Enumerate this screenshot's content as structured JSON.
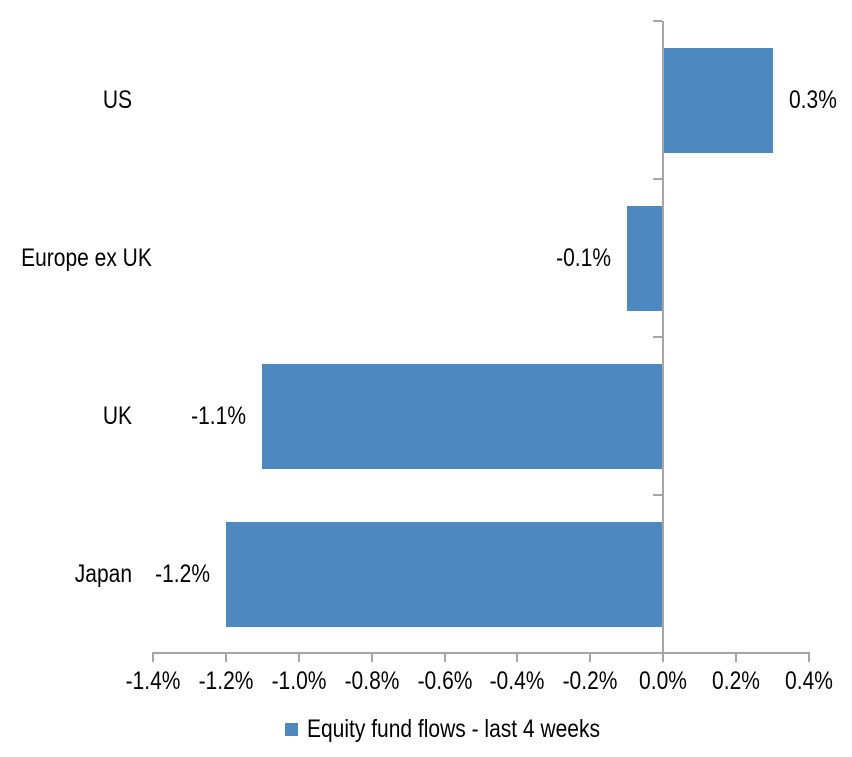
{
  "chart_data": {
    "type": "bar",
    "orientation": "horizontal",
    "title": "",
    "categories": [
      "US",
      "Europe ex UK",
      "UK",
      "Japan"
    ],
    "series": [
      {
        "name": "Equity fund flows - last 4 weeks",
        "values": [
          0.3,
          -0.1,
          -1.1,
          -1.2
        ],
        "data_labels": [
          "0.3%",
          "-0.1%",
          "-1.1%",
          "-1.2%"
        ]
      }
    ],
    "xlim": [
      -1.4,
      0.4
    ],
    "x_tick_step": 0.2,
    "x_tick_labels": [
      "-1.4%",
      "-1.2%",
      "-1.0%",
      "-0.8%",
      "-0.6%",
      "-0.4%",
      "-0.2%",
      "0.0%",
      "0.2%",
      "0.4%"
    ],
    "grid": false,
    "legend_position": "bottom",
    "colors": {
      "bar": "#4D88BE",
      "axis": "#A6A6A6",
      "text": "#000000"
    }
  }
}
